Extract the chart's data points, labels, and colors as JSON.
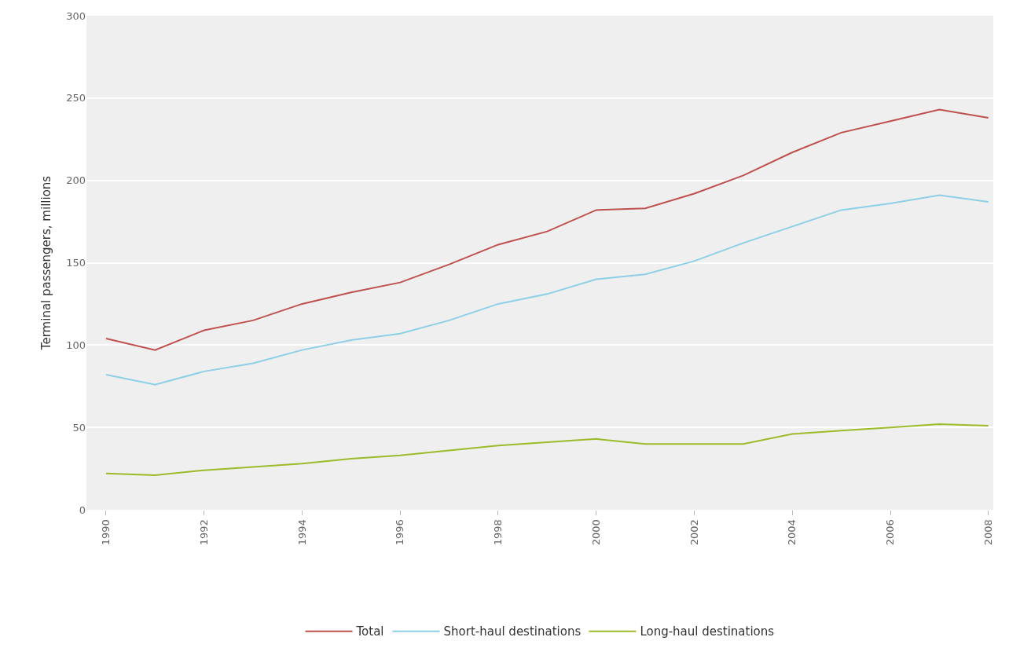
{
  "chart_data": {
    "type": "line",
    "ylabel": "Terminal passengers, millions",
    "x": [
      1990,
      1991,
      1992,
      1993,
      1994,
      1995,
      1996,
      1997,
      1998,
      1999,
      2000,
      2001,
      2002,
      2003,
      2004,
      2005,
      2006,
      2007,
      2008
    ],
    "series": [
      {
        "name": "Total",
        "color": "#c0504d",
        "values": [
          104,
          97,
          109,
          115,
          125,
          132,
          138,
          149,
          161,
          169,
          182,
          183,
          192,
          203,
          217,
          229,
          236,
          243,
          238
        ]
      },
      {
        "name": "Short-haul destinations",
        "color": "#8ccfe6",
        "values": [
          82,
          76,
          84,
          89,
          97,
          103,
          107,
          115,
          125,
          131,
          140,
          143,
          151,
          162,
          172,
          182,
          186,
          191,
          187
        ]
      },
      {
        "name": "Long-haul destinations",
        "color": "#9cba29",
        "values": [
          22,
          21,
          24,
          26,
          28,
          31,
          33,
          36,
          39,
          41,
          43,
          40,
          40,
          40,
          46,
          48,
          50,
          52,
          51
        ]
      }
    ],
    "xlim": [
      1989.6,
      2008.1
    ],
    "xticks": [
      1990,
      1992,
      1994,
      1996,
      1998,
      2000,
      2002,
      2004,
      2006,
      2008
    ],
    "ylim": [
      0,
      300
    ],
    "yticks": [
      0,
      50,
      100,
      150,
      200,
      250,
      300
    ],
    "grid": "y",
    "legend": "bottom",
    "marker": "none",
    "line_style": "solid"
  }
}
